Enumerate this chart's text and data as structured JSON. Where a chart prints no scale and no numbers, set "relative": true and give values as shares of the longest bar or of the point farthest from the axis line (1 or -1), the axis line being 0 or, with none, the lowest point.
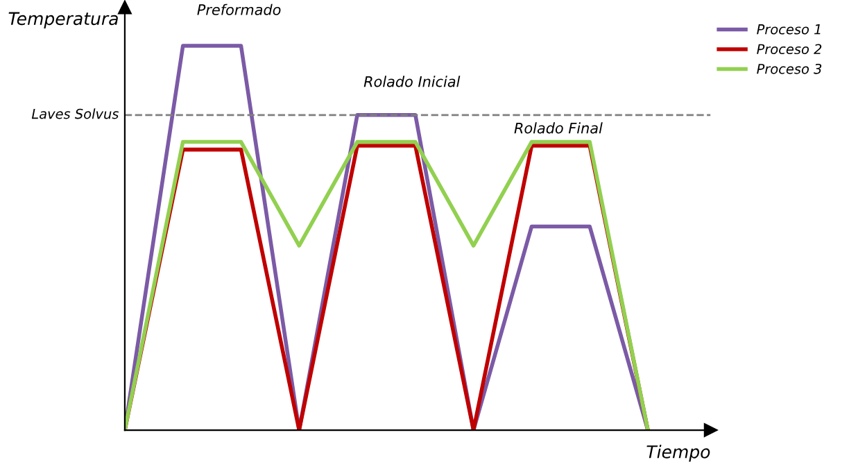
{
  "chart_data": {
    "type": "line",
    "relative": true,
    "xlabel": "Tiempo",
    "ylabel": "Temperatura",
    "tick_labels": false,
    "legend": "top right",
    "marker": "none",
    "line_style": "solid",
    "categories": [
      null,
      null,
      null,
      null,
      null,
      null,
      null,
      null,
      null,
      null
    ],
    "series": [
      {
        "name": "Proceso 1",
        "color": "#7b5aa6",
        "values": [
          0,
          1,
          1,
          0,
          0.82,
          0.82,
          0,
          0.53,
          0.53,
          0
        ]
      },
      {
        "name": "Proceso 2",
        "color": "#c00000",
        "values": [
          0,
          0.73,
          0.73,
          0,
          0.74,
          0.74,
          0,
          0.74,
          0.74,
          0
        ]
      },
      {
        "name": "Proceso 3",
        "color": "#92d050",
        "values": [
          0,
          0.75,
          0.75,
          0.48,
          0.75,
          0.75,
          0.48,
          0.75,
          0.75,
          0
        ]
      }
    ],
    "ref_lines": [
      {
        "axis": "y",
        "value": 0.82,
        "label": "Laves Solvus",
        "color": "#808080",
        "line_style": "dashed"
      }
    ],
    "annotations": [
      "Preformado",
      "Rolado Inicial",
      "Rolado Final"
    ]
  }
}
